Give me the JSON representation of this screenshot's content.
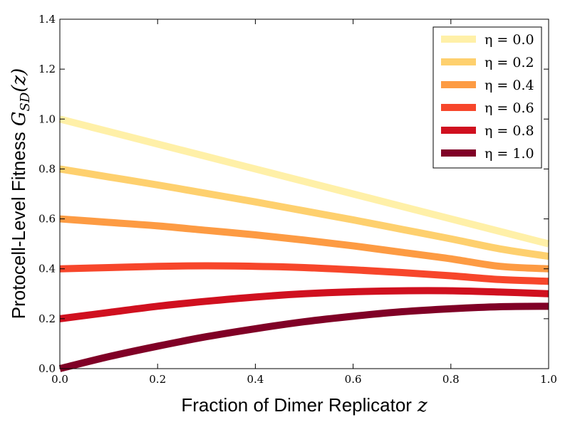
{
  "chart_data": {
    "type": "line",
    "title": "",
    "xlabel": "Fraction of Dimer Replicator",
    "xlabel_var": "z",
    "ylabel": "Protocell-Level Fitness",
    "ylabel_var": "G",
    "ylabel_sub": "SD",
    "ylabel_arg": "(z)",
    "xlim": [
      0.0,
      1.0
    ],
    "ylim": [
      0.0,
      1.4
    ],
    "xticks": [
      "0.0",
      "0.2",
      "0.4",
      "0.6",
      "0.8",
      "1.0"
    ],
    "yticks": [
      "0.0",
      "0.2",
      "0.4",
      "0.6",
      "0.8",
      "1.0",
      "1.2",
      "1.4"
    ],
    "grid": false,
    "legend_position": "top-right",
    "x": [
      0.0,
      0.1,
      0.2,
      0.3,
      0.4,
      0.5,
      0.6,
      0.7,
      0.8,
      0.9,
      1.0
    ],
    "series": [
      {
        "name": "η = 0.0",
        "color": "#fff0a8",
        "values": [
          1.0,
          0.95,
          0.9,
          0.85,
          0.8,
          0.75,
          0.7,
          0.65,
          0.6,
          0.55,
          0.5
        ]
      },
      {
        "name": "η = 0.2",
        "color": "#fed06e",
        "values": [
          0.8,
          0.768,
          0.736,
          0.702,
          0.668,
          0.632,
          0.596,
          0.558,
          0.52,
          0.48,
          0.45
        ]
      },
      {
        "name": "η = 0.4",
        "color": "#fd9b43",
        "values": [
          0.6,
          0.586,
          0.572,
          0.554,
          0.536,
          0.515,
          0.492,
          0.466,
          0.44,
          0.41,
          0.4
        ]
      },
      {
        "name": "η = 0.6",
        "color": "#f7462b",
        "values": [
          0.4,
          0.405,
          0.41,
          0.412,
          0.41,
          0.405,
          0.396,
          0.385,
          0.372,
          0.357,
          0.35
        ]
      },
      {
        "name": "η = 0.8",
        "color": "#d0101f",
        "values": [
          0.2,
          0.225,
          0.25,
          0.27,
          0.287,
          0.3,
          0.308,
          0.312,
          0.312,
          0.307,
          0.3
        ]
      },
      {
        "name": "η = 1.0",
        "color": "#800026",
        "values": [
          0.0,
          0.048,
          0.09,
          0.128,
          0.16,
          0.188,
          0.21,
          0.228,
          0.24,
          0.248,
          0.25
        ]
      }
    ]
  }
}
